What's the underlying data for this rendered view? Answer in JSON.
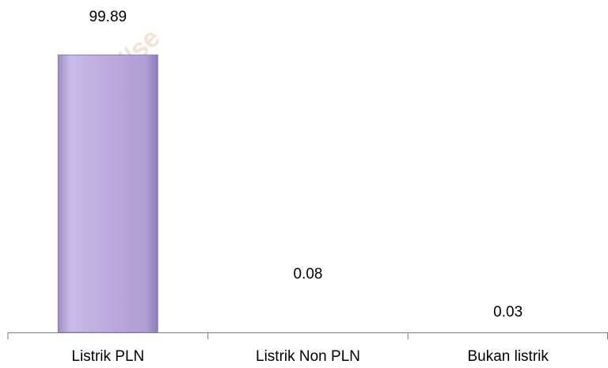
{
  "watermark": "https://se",
  "chart_data": {
    "type": "bar",
    "categories": [
      "Listrik PLN",
      "Listrik Non PLN",
      "Bukan listrik"
    ],
    "values": [
      99.89,
      0.08,
      0.03
    ],
    "value_labels": [
      "99.89",
      "0.08",
      "0.03"
    ],
    "title": "",
    "xlabel": "",
    "ylabel": "",
    "ylim": [
      0,
      100
    ],
    "grid": false,
    "legend": "none",
    "colors": {
      "bar": "#b7a6d6",
      "bar_edge": "#8f7fb4",
      "axis": "#808080"
    }
  }
}
